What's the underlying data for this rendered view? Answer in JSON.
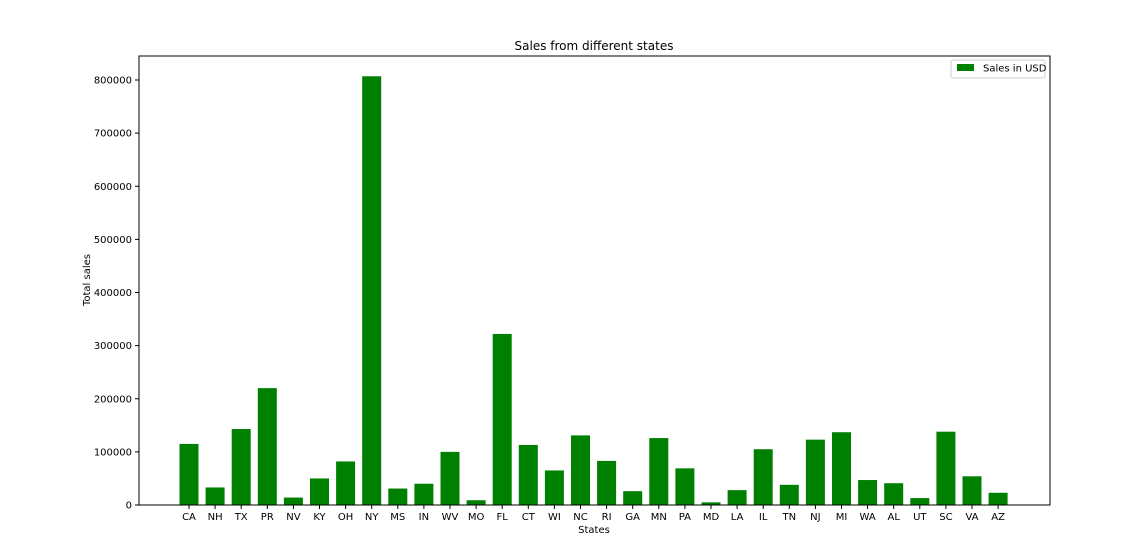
{
  "chart_data": {
    "type": "bar",
    "title": "Sales from different states",
    "xlabel": "States",
    "ylabel": "Total sales",
    "ylim": [
      0,
      850000
    ],
    "yticks": [
      0,
      100000,
      200000,
      300000,
      400000,
      500000,
      600000,
      700000,
      800000
    ],
    "grid": false,
    "legend_position": "top-right",
    "categories": [
      "CA",
      "NH",
      "TX",
      "PR",
      "NV",
      "KY",
      "OH",
      "NY",
      "MS",
      "IN",
      "WV",
      "MO",
      "FL",
      "CT",
      "WI",
      "NC",
      "RI",
      "GA",
      "MN",
      "PA",
      "MD",
      "LA",
      "IL",
      "TN",
      "NJ",
      "MI",
      "WA",
      "AL",
      "UT",
      "SC",
      "VA",
      "AZ"
    ],
    "series": [
      {
        "name": "Sales in USD",
        "color": "#008000",
        "values": [
          115000,
          33000,
          143000,
          220000,
          14000,
          50000,
          82000,
          807000,
          31000,
          40000,
          100000,
          9000,
          322000,
          113000,
          65000,
          131000,
          83000,
          26000,
          126000,
          69000,
          5000,
          28000,
          105000,
          38000,
          123000,
          137000,
          47000,
          41000,
          13000,
          138000,
          54000,
          23000
        ]
      }
    ]
  }
}
